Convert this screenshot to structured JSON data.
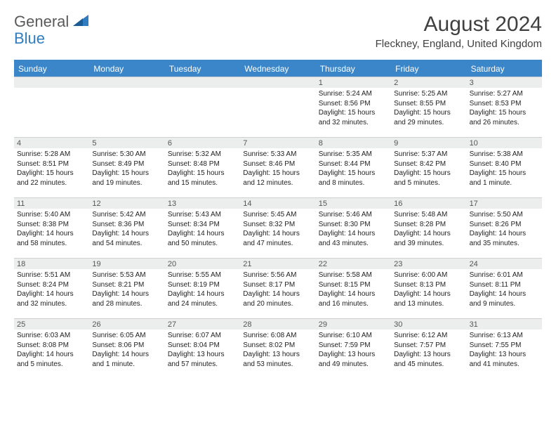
{
  "logo": {
    "text1": "General",
    "text2": "Blue",
    "triangle_color": "#2f7dc0"
  },
  "title": "August 2024",
  "location": "Fleckney, England, United Kingdom",
  "colors": {
    "header_bg": "#3a86c8",
    "header_text": "#ffffff",
    "daynum_bg": "#eceded",
    "divider": "#d0d0d0",
    "body_text": "#222222",
    "title_text": "#404040"
  },
  "day_headers": [
    "Sunday",
    "Monday",
    "Tuesday",
    "Wednesday",
    "Thursday",
    "Friday",
    "Saturday"
  ],
  "days": [
    {
      "n": "",
      "sr": "",
      "ss": "",
      "dl": ""
    },
    {
      "n": "",
      "sr": "",
      "ss": "",
      "dl": ""
    },
    {
      "n": "",
      "sr": "",
      "ss": "",
      "dl": ""
    },
    {
      "n": "",
      "sr": "",
      "ss": "",
      "dl": ""
    },
    {
      "n": "1",
      "sr": "Sunrise: 5:24 AM",
      "ss": "Sunset: 8:56 PM",
      "dl": "Daylight: 15 hours and 32 minutes."
    },
    {
      "n": "2",
      "sr": "Sunrise: 5:25 AM",
      "ss": "Sunset: 8:55 PM",
      "dl": "Daylight: 15 hours and 29 minutes."
    },
    {
      "n": "3",
      "sr": "Sunrise: 5:27 AM",
      "ss": "Sunset: 8:53 PM",
      "dl": "Daylight: 15 hours and 26 minutes."
    },
    {
      "n": "4",
      "sr": "Sunrise: 5:28 AM",
      "ss": "Sunset: 8:51 PM",
      "dl": "Daylight: 15 hours and 22 minutes."
    },
    {
      "n": "5",
      "sr": "Sunrise: 5:30 AM",
      "ss": "Sunset: 8:49 PM",
      "dl": "Daylight: 15 hours and 19 minutes."
    },
    {
      "n": "6",
      "sr": "Sunrise: 5:32 AM",
      "ss": "Sunset: 8:48 PM",
      "dl": "Daylight: 15 hours and 15 minutes."
    },
    {
      "n": "7",
      "sr": "Sunrise: 5:33 AM",
      "ss": "Sunset: 8:46 PM",
      "dl": "Daylight: 15 hours and 12 minutes."
    },
    {
      "n": "8",
      "sr": "Sunrise: 5:35 AM",
      "ss": "Sunset: 8:44 PM",
      "dl": "Daylight: 15 hours and 8 minutes."
    },
    {
      "n": "9",
      "sr": "Sunrise: 5:37 AM",
      "ss": "Sunset: 8:42 PM",
      "dl": "Daylight: 15 hours and 5 minutes."
    },
    {
      "n": "10",
      "sr": "Sunrise: 5:38 AM",
      "ss": "Sunset: 8:40 PM",
      "dl": "Daylight: 15 hours and 1 minute."
    },
    {
      "n": "11",
      "sr": "Sunrise: 5:40 AM",
      "ss": "Sunset: 8:38 PM",
      "dl": "Daylight: 14 hours and 58 minutes."
    },
    {
      "n": "12",
      "sr": "Sunrise: 5:42 AM",
      "ss": "Sunset: 8:36 PM",
      "dl": "Daylight: 14 hours and 54 minutes."
    },
    {
      "n": "13",
      "sr": "Sunrise: 5:43 AM",
      "ss": "Sunset: 8:34 PM",
      "dl": "Daylight: 14 hours and 50 minutes."
    },
    {
      "n": "14",
      "sr": "Sunrise: 5:45 AM",
      "ss": "Sunset: 8:32 PM",
      "dl": "Daylight: 14 hours and 47 minutes."
    },
    {
      "n": "15",
      "sr": "Sunrise: 5:46 AM",
      "ss": "Sunset: 8:30 PM",
      "dl": "Daylight: 14 hours and 43 minutes."
    },
    {
      "n": "16",
      "sr": "Sunrise: 5:48 AM",
      "ss": "Sunset: 8:28 PM",
      "dl": "Daylight: 14 hours and 39 minutes."
    },
    {
      "n": "17",
      "sr": "Sunrise: 5:50 AM",
      "ss": "Sunset: 8:26 PM",
      "dl": "Daylight: 14 hours and 35 minutes."
    },
    {
      "n": "18",
      "sr": "Sunrise: 5:51 AM",
      "ss": "Sunset: 8:24 PM",
      "dl": "Daylight: 14 hours and 32 minutes."
    },
    {
      "n": "19",
      "sr": "Sunrise: 5:53 AM",
      "ss": "Sunset: 8:21 PM",
      "dl": "Daylight: 14 hours and 28 minutes."
    },
    {
      "n": "20",
      "sr": "Sunrise: 5:55 AM",
      "ss": "Sunset: 8:19 PM",
      "dl": "Daylight: 14 hours and 24 minutes."
    },
    {
      "n": "21",
      "sr": "Sunrise: 5:56 AM",
      "ss": "Sunset: 8:17 PM",
      "dl": "Daylight: 14 hours and 20 minutes."
    },
    {
      "n": "22",
      "sr": "Sunrise: 5:58 AM",
      "ss": "Sunset: 8:15 PM",
      "dl": "Daylight: 14 hours and 16 minutes."
    },
    {
      "n": "23",
      "sr": "Sunrise: 6:00 AM",
      "ss": "Sunset: 8:13 PM",
      "dl": "Daylight: 14 hours and 13 minutes."
    },
    {
      "n": "24",
      "sr": "Sunrise: 6:01 AM",
      "ss": "Sunset: 8:11 PM",
      "dl": "Daylight: 14 hours and 9 minutes."
    },
    {
      "n": "25",
      "sr": "Sunrise: 6:03 AM",
      "ss": "Sunset: 8:08 PM",
      "dl": "Daylight: 14 hours and 5 minutes."
    },
    {
      "n": "26",
      "sr": "Sunrise: 6:05 AM",
      "ss": "Sunset: 8:06 PM",
      "dl": "Daylight: 14 hours and 1 minute."
    },
    {
      "n": "27",
      "sr": "Sunrise: 6:07 AM",
      "ss": "Sunset: 8:04 PM",
      "dl": "Daylight: 13 hours and 57 minutes."
    },
    {
      "n": "28",
      "sr": "Sunrise: 6:08 AM",
      "ss": "Sunset: 8:02 PM",
      "dl": "Daylight: 13 hours and 53 minutes."
    },
    {
      "n": "29",
      "sr": "Sunrise: 6:10 AM",
      "ss": "Sunset: 7:59 PM",
      "dl": "Daylight: 13 hours and 49 minutes."
    },
    {
      "n": "30",
      "sr": "Sunrise: 6:12 AM",
      "ss": "Sunset: 7:57 PM",
      "dl": "Daylight: 13 hours and 45 minutes."
    },
    {
      "n": "31",
      "sr": "Sunrise: 6:13 AM",
      "ss": "Sunset: 7:55 PM",
      "dl": "Daylight: 13 hours and 41 minutes."
    }
  ]
}
